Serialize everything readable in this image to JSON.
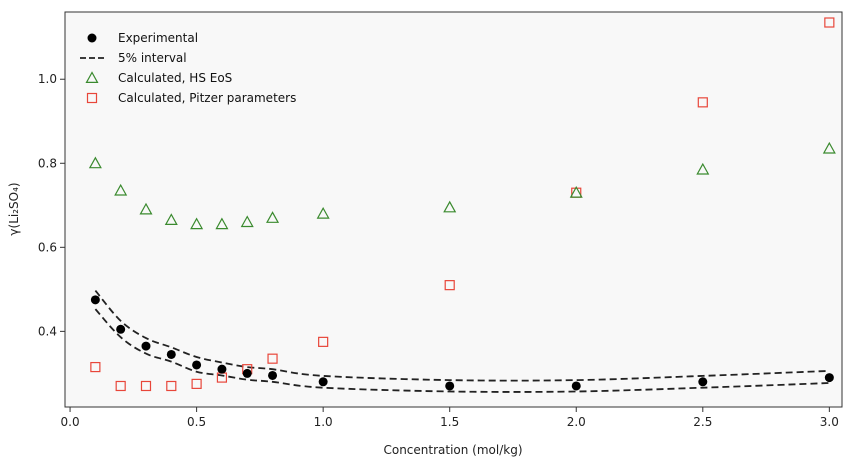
{
  "chart_data": {
    "type": "scatter",
    "xlabel": "Concentration (mol/kg)",
    "ylabel": "γ(Li₂SO₄)",
    "xlim": [
      -0.02,
      3.05
    ],
    "ylim": [
      0.22,
      1.16
    ],
    "xticks": [
      "0.0",
      "0.5",
      "1.0",
      "1.5",
      "2.0",
      "2.5",
      "3.0"
    ],
    "yticks": [
      "0.4",
      "0.6",
      "0.8",
      "1.0"
    ],
    "grid": false,
    "legend_position": "top-left",
    "series": [
      {
        "name": "Experimental",
        "marker": "filled-circle",
        "color": "#000000",
        "x": [
          0.1,
          0.2,
          0.3,
          0.4,
          0.5,
          0.6,
          0.7,
          0.8,
          1.0,
          1.5,
          2.0,
          2.5,
          3.0
        ],
        "y": [
          0.475,
          0.405,
          0.365,
          0.345,
          0.32,
          0.31,
          0.3,
          0.295,
          0.28,
          0.27,
          0.27,
          0.28,
          0.29
        ]
      },
      {
        "name": "5% interval",
        "marker": "dashed-line",
        "color": "#222222",
        "upper": {
          "x": [
            0.1,
            0.2,
            0.3,
            0.4,
            0.5,
            0.6,
            0.7,
            0.8,
            1.0,
            1.5,
            2.0,
            2.5,
            3.0
          ],
          "y": [
            0.497,
            0.425,
            0.384,
            0.362,
            0.339,
            0.326,
            0.315,
            0.31,
            0.294,
            0.284,
            0.284,
            0.294,
            0.306
          ]
        },
        "lower": {
          "x": [
            0.1,
            0.2,
            0.3,
            0.4,
            0.5,
            0.6,
            0.7,
            0.8,
            1.0,
            1.5,
            2.0,
            2.5,
            3.0
          ],
          "y": [
            0.453,
            0.386,
            0.347,
            0.328,
            0.304,
            0.295,
            0.285,
            0.28,
            0.266,
            0.257,
            0.257,
            0.266,
            0.277
          ]
        }
      },
      {
        "name": "Calculated, HS EoS",
        "marker": "open-triangle",
        "color": "#3a8a2e",
        "x": [
          0.1,
          0.2,
          0.3,
          0.4,
          0.5,
          0.6,
          0.7,
          0.8,
          1.0,
          1.5,
          2.0,
          2.5,
          3.0
        ],
        "y": [
          0.8,
          0.735,
          0.69,
          0.665,
          0.655,
          0.655,
          0.66,
          0.67,
          0.68,
          0.695,
          0.73,
          0.785,
          0.835
        ]
      },
      {
        "name": "Calculated, Pitzer parameters",
        "marker": "open-square",
        "color": "#e8463a",
        "x": [
          0.1,
          0.2,
          0.3,
          0.4,
          0.5,
          0.6,
          0.7,
          0.8,
          1.0,
          1.5,
          2.0,
          2.5,
          3.0
        ],
        "y": [
          0.315,
          0.27,
          0.27,
          0.27,
          0.275,
          0.29,
          0.31,
          0.335,
          0.375,
          0.51,
          0.73,
          0.945,
          1.135
        ]
      }
    ]
  }
}
